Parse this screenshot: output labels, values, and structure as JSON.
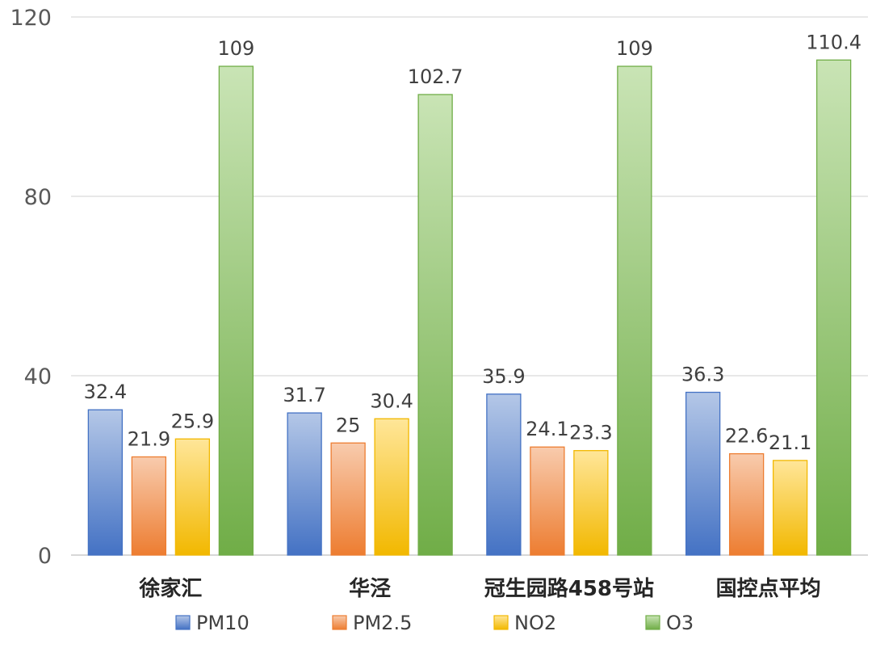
{
  "chart_data": {
    "type": "bar",
    "categories": [
      "徐家汇",
      "华泾",
      "冠生园路458号站",
      "国控点平均"
    ],
    "series": [
      {
        "name": "PM10",
        "values": [
          32.4,
          31.7,
          35.9,
          36.3
        ],
        "color": "#4472C4",
        "color_light": "#B4C7E7"
      },
      {
        "name": "PM2.5",
        "values": [
          21.9,
          25,
          24.1,
          22.6
        ],
        "color": "#ED7D31",
        "color_light": "#F8CBAD"
      },
      {
        "name": "NO2",
        "values": [
          25.9,
          30.4,
          23.3,
          21.1
        ],
        "color": "#F2B800",
        "color_light": "#FFE699"
      },
      {
        "name": "O3",
        "values": [
          109,
          102.7,
          109,
          110.4
        ],
        "color": "#70AD47",
        "color_light": "#C9E4B5"
      }
    ],
    "title": "",
    "xlabel": "",
    "ylabel": "",
    "ylim": [
      0,
      120
    ],
    "yticks": [
      0,
      40,
      80,
      120
    ],
    "grid": true,
    "legend": "bottom"
  }
}
